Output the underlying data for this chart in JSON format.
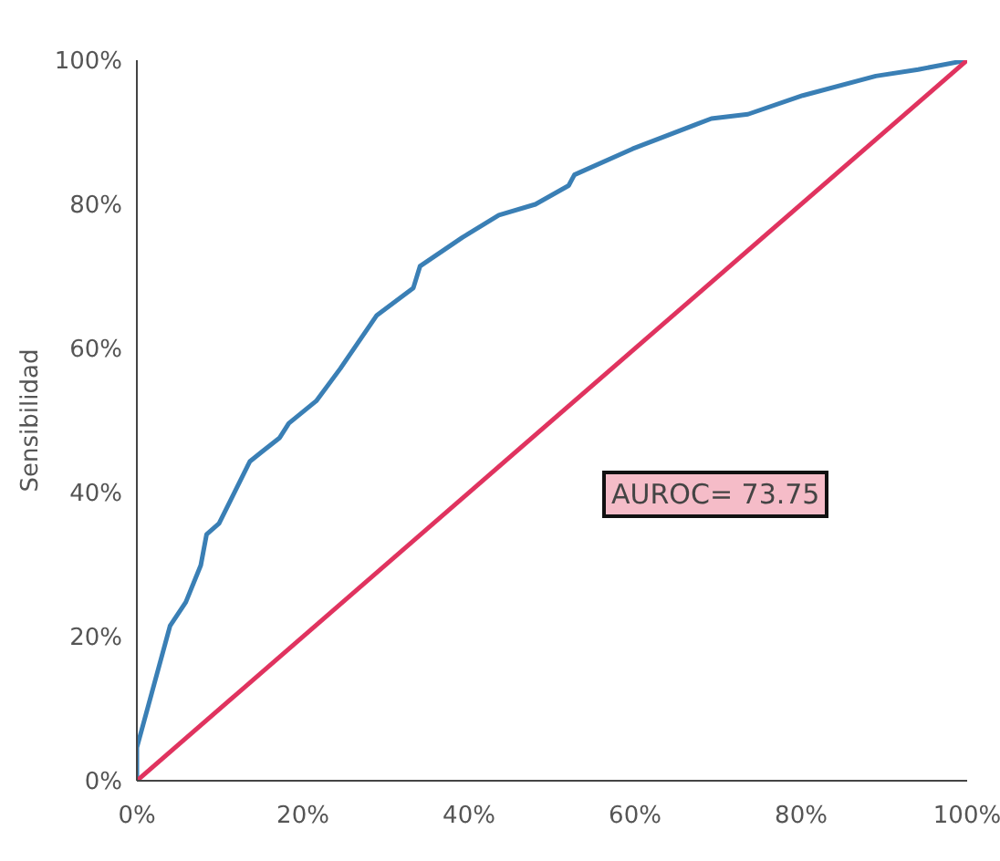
{
  "chart_data": {
    "type": "line",
    "ylabel": "Sensibilidad",
    "annotations": [
      "AUROC= 73.75"
    ],
    "series": [
      {
        "color": "#3a7fb5",
        "x": [
          0,
          0,
          1.8,
          4.0,
          5.9,
          7.7,
          8.4,
          9.9,
          13.6,
          15.0,
          17.2,
          18.3,
          21.6,
          24.5,
          28.9,
          33.3,
          34.1,
          39.2,
          43.6,
          48.0,
          52.0,
          52.7,
          59.7,
          69.2,
          73.6,
          80.2,
          89.0,
          94.1,
          100
        ],
        "values": [
          0,
          4.6,
          12.2,
          21.5,
          24.8,
          29.9,
          34.2,
          35.7,
          44.3,
          45.6,
          47.6,
          49.6,
          52.7,
          57.2,
          64.6,
          68.4,
          71.4,
          75.4,
          78.5,
          80.0,
          82.6,
          84.1,
          87.7,
          91.9,
          92.5,
          95.1,
          97.8,
          98.7,
          100
        ]
      },
      {
        "color": "#e0335f",
        "x": [
          0,
          100
        ],
        "values": [
          0,
          100
        ]
      }
    ],
    "xlim": [
      0,
      100
    ],
    "ylim": [
      0,
      100
    ],
    "xticks": [
      {
        "value": 0,
        "label": "0%"
      },
      {
        "value": 20,
        "label": "20%"
      },
      {
        "value": 40,
        "label": "40%"
      },
      {
        "value": 60,
        "label": "60%"
      },
      {
        "value": 80,
        "label": "80%"
      },
      {
        "value": 100,
        "label": "100%"
      }
    ],
    "yticks": [
      {
        "value": 0,
        "label": "0%"
      },
      {
        "value": 20,
        "label": "20%"
      },
      {
        "value": 40,
        "label": "40%"
      },
      {
        "value": 60,
        "label": "60%"
      },
      {
        "value": 80,
        "label": "80%"
      },
      {
        "value": 100,
        "label": "100%"
      }
    ],
    "grid": false,
    "legend": false,
    "marker": "none",
    "line_style": "solid"
  }
}
